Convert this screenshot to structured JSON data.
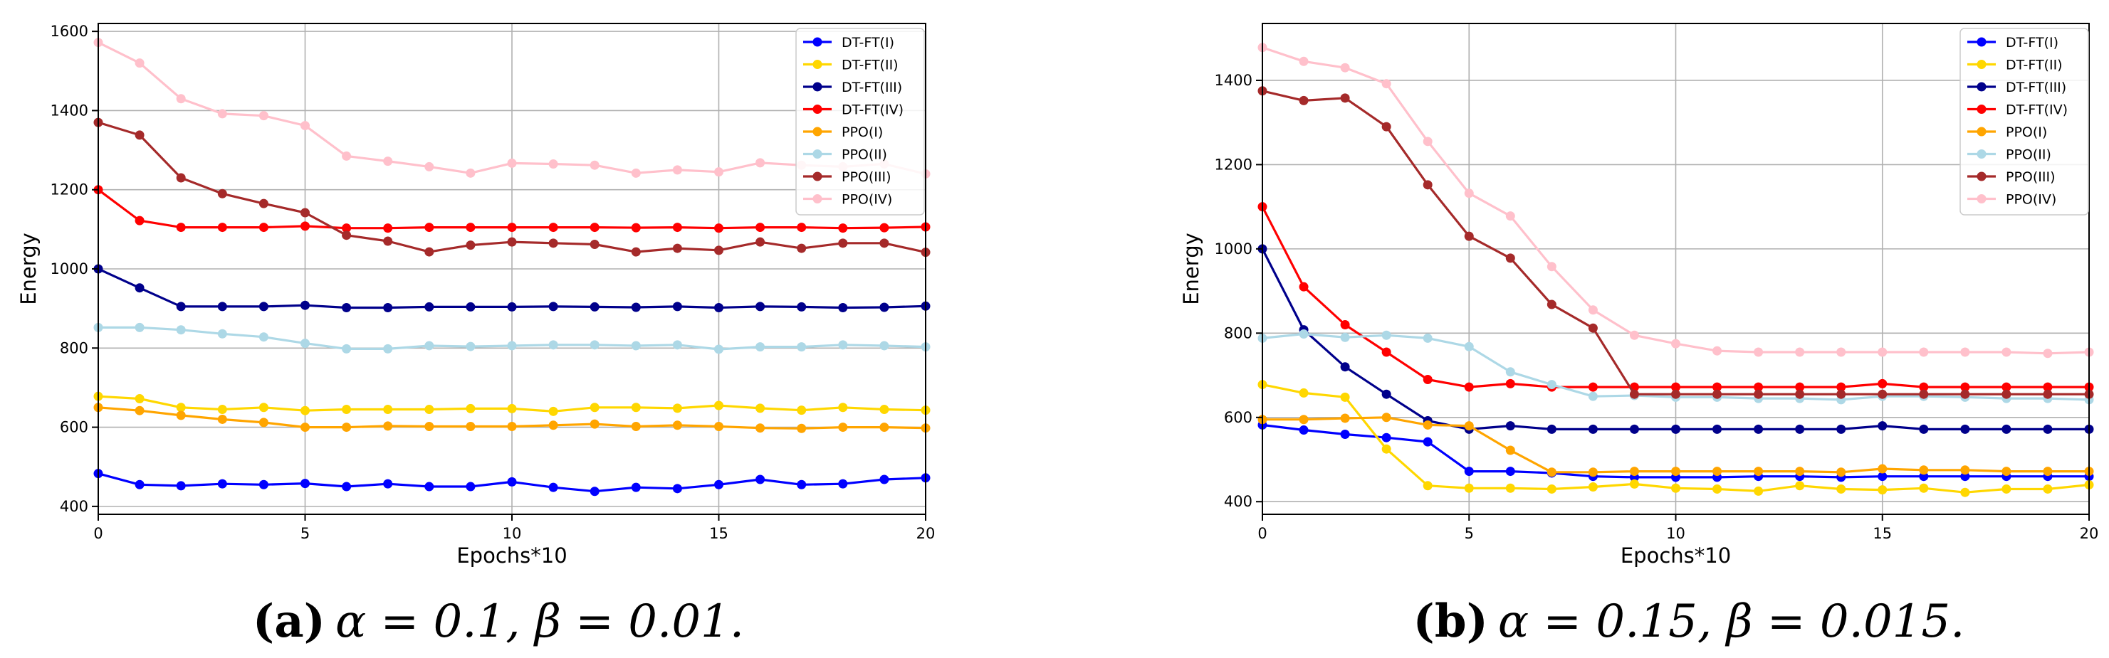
{
  "chart_data": [
    {
      "type": "line",
      "caption_label": "(a)",
      "caption_text": "α = 0.1, β = 0.01.",
      "xlabel": "Epochs*10",
      "ylabel": "Energy",
      "xlim": [
        0,
        20
      ],
      "ylim": [
        380,
        1620
      ],
      "xticks": [
        0,
        5,
        10,
        15,
        20
      ],
      "yticks": [
        400,
        600,
        800,
        1000,
        1200,
        1400,
        1600
      ],
      "grid": true,
      "legend_position": "top-right",
      "x": [
        0,
        1,
        2,
        3,
        4,
        5,
        6,
        7,
        8,
        9,
        10,
        11,
        12,
        13,
        14,
        15,
        16,
        17,
        18,
        19,
        20
      ],
      "series": [
        {
          "name": "DT-FT(I)",
          "color": "#0000ff",
          "values": [
            483,
            455,
            452,
            457,
            455,
            458,
            450,
            457,
            450,
            450,
            462,
            448,
            438,
            448,
            445,
            455,
            468,
            455,
            457,
            468,
            472
          ]
        },
        {
          "name": "DT-FT(II)",
          "color": "#ffd700",
          "values": [
            678,
            672,
            650,
            645,
            650,
            642,
            645,
            645,
            645,
            647,
            647,
            640,
            650,
            650,
            648,
            655,
            648,
            643,
            650,
            645,
            643
          ]
        },
        {
          "name": "DT-FT(III)",
          "color": "#00008b",
          "values": [
            1000,
            952,
            905,
            905,
            905,
            908,
            902,
            902,
            904,
            904,
            904,
            905,
            904,
            903,
            905,
            902,
            905,
            904,
            902,
            903,
            906
          ]
        },
        {
          "name": "DT-FT(IV)",
          "color": "#ff0000",
          "values": [
            1200,
            1122,
            1105,
            1105,
            1105,
            1108,
            1103,
            1103,
            1105,
            1105,
            1105,
            1105,
            1105,
            1104,
            1105,
            1103,
            1105,
            1105,
            1103,
            1104,
            1106
          ]
        },
        {
          "name": "PPO(I)",
          "color": "#ffa500",
          "values": [
            650,
            642,
            630,
            620,
            612,
            600,
            600,
            603,
            602,
            602,
            602,
            605,
            608,
            602,
            605,
            602,
            598,
            597,
            600,
            600,
            598
          ]
        },
        {
          "name": "PPO(II)",
          "color": "#add8e6",
          "values": [
            852,
            852,
            846,
            836,
            828,
            812,
            798,
            798,
            806,
            804,
            806,
            808,
            808,
            806,
            808,
            797,
            803,
            803,
            808,
            806,
            803
          ]
        },
        {
          "name": "PPO(III)",
          "color": "#a52a2a",
          "values": [
            1370,
            1338,
            1230,
            1190,
            1165,
            1142,
            1085,
            1070,
            1043,
            1060,
            1068,
            1065,
            1062,
            1043,
            1052,
            1047,
            1068,
            1052,
            1065,
            1065,
            1042
          ]
        },
        {
          "name": "PPO(IV)",
          "color": "#ffc0cb",
          "values": [
            1572,
            1520,
            1430,
            1392,
            1387,
            1362,
            1285,
            1272,
            1258,
            1242,
            1267,
            1265,
            1262,
            1242,
            1250,
            1245,
            1268,
            1262,
            1258,
            1265,
            1240
          ]
        }
      ]
    },
    {
      "type": "line",
      "caption_label": "(b)",
      "caption_text": "α = 0.15, β = 0.015.",
      "xlabel": "Epochs*10",
      "ylabel": "Energy",
      "xlim": [
        0,
        20
      ],
      "ylim": [
        370,
        1535
      ],
      "xticks": [
        0,
        5,
        10,
        15,
        20
      ],
      "yticks": [
        400,
        600,
        800,
        1000,
        1200,
        1400
      ],
      "grid": true,
      "legend_position": "top-right",
      "x": [
        0,
        1,
        2,
        3,
        4,
        5,
        6,
        7,
        8,
        9,
        10,
        11,
        12,
        13,
        14,
        15,
        16,
        17,
        18,
        19,
        20
      ],
      "series": [
        {
          "name": "DT-FT(I)",
          "color": "#0000ff",
          "values": [
            582,
            570,
            560,
            552,
            542,
            472,
            472,
            468,
            460,
            458,
            458,
            458,
            460,
            460,
            458,
            460,
            460,
            460,
            460,
            460,
            460
          ]
        },
        {
          "name": "DT-FT(II)",
          "color": "#ffd700",
          "values": [
            678,
            658,
            648,
            525,
            438,
            432,
            432,
            430,
            435,
            442,
            432,
            430,
            425,
            438,
            430,
            428,
            432,
            422,
            430,
            430,
            440
          ]
        },
        {
          "name": "DT-FT(III)",
          "color": "#00008b",
          "values": [
            1000,
            808,
            720,
            655,
            592,
            572,
            580,
            572,
            572,
            572,
            572,
            572,
            572,
            572,
            572,
            580,
            572,
            572,
            572,
            572,
            572
          ]
        },
        {
          "name": "DT-FT(IV)",
          "color": "#ff0000",
          "values": [
            1100,
            910,
            820,
            755,
            690,
            672,
            680,
            672,
            672,
            672,
            672,
            672,
            672,
            672,
            672,
            680,
            672,
            672,
            672,
            672,
            672
          ]
        },
        {
          "name": "PPO(I)",
          "color": "#ffa500",
          "values": [
            595,
            595,
            598,
            600,
            582,
            580,
            522,
            470,
            470,
            472,
            472,
            472,
            472,
            472,
            470,
            478,
            475,
            475,
            472,
            472,
            472
          ]
        },
        {
          "name": "PPO(II)",
          "color": "#add8e6",
          "values": [
            788,
            798,
            790,
            795,
            788,
            768,
            708,
            678,
            650,
            652,
            648,
            648,
            645,
            645,
            642,
            650,
            650,
            648,
            645,
            645,
            642
          ]
        },
        {
          "name": "PPO(III)",
          "color": "#a52a2a",
          "values": [
            1375,
            1352,
            1358,
            1290,
            1152,
            1030,
            978,
            868,
            812,
            655,
            655,
            655,
            655,
            655,
            655,
            655,
            655,
            655,
            655,
            655,
            655
          ]
        },
        {
          "name": "PPO(IV)",
          "color": "#ffc0cb",
          "values": [
            1478,
            1445,
            1430,
            1392,
            1255,
            1132,
            1078,
            958,
            855,
            795,
            775,
            758,
            755,
            755,
            755,
            755,
            755,
            755,
            755,
            752,
            755
          ]
        }
      ]
    }
  ]
}
